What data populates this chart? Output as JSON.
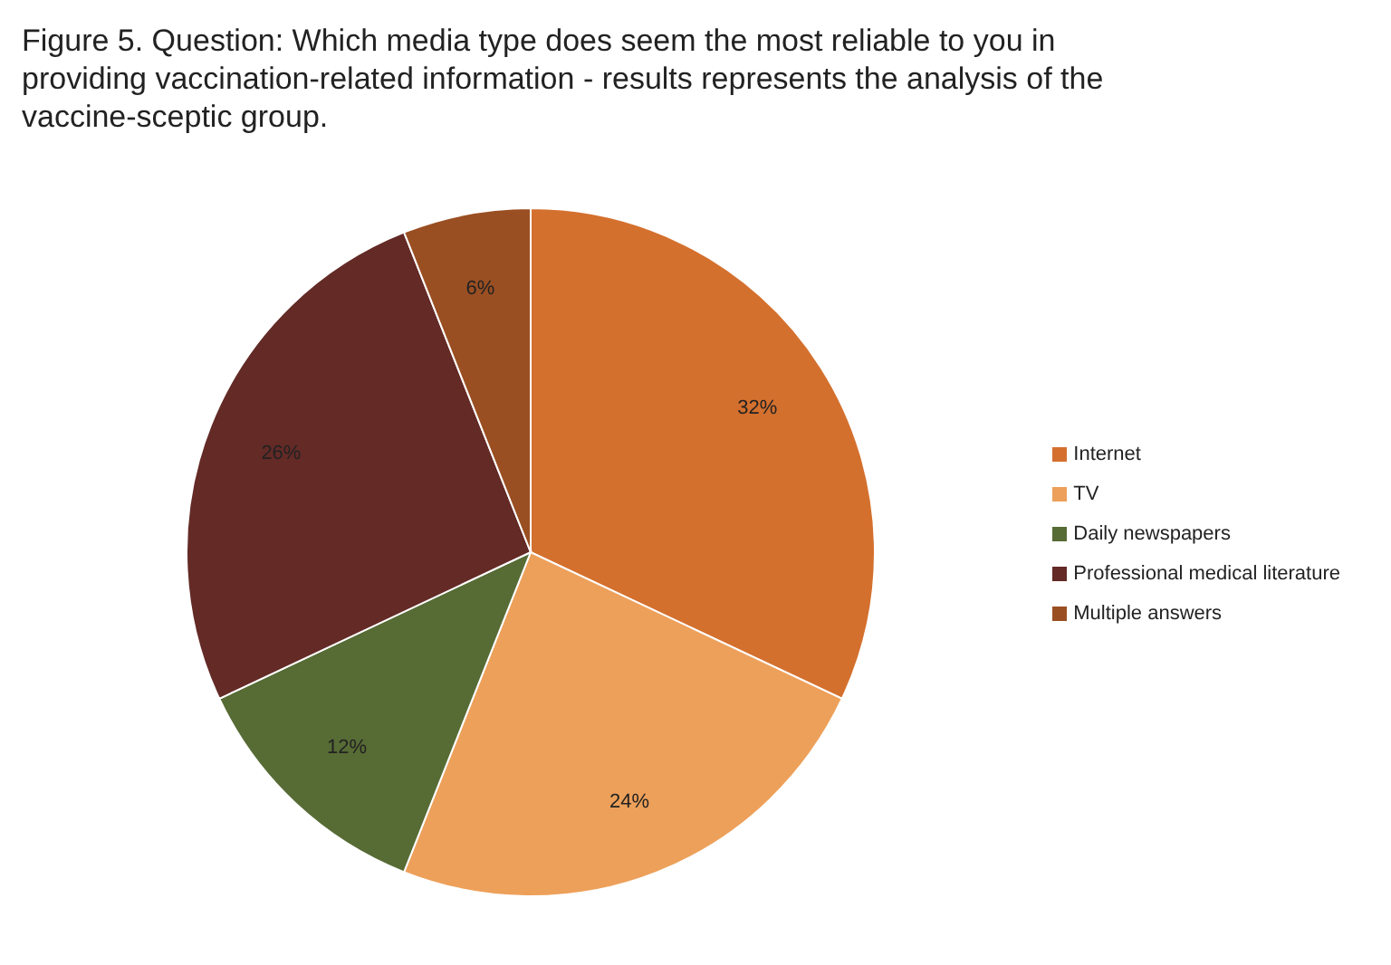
{
  "chart_data": {
    "type": "pie",
    "title": "Figure 5. Question: Which media type does seem the most reliable to you in providing vaccination-related information - results represents the analysis of the vaccine-sceptic group.",
    "categories": [
      "Internet",
      "TV",
      "Daily newspapers",
      "Professional medical literature",
      "Multiple answers"
    ],
    "values": [
      32,
      24,
      12,
      26,
      6
    ],
    "value_labels": [
      "32%",
      "24%",
      "12%",
      "26%",
      "6%"
    ],
    "colors": [
      "#d4702e",
      "#eda05a",
      "#576b35",
      "#632a26",
      "#9a4f22"
    ],
    "legend": "right"
  }
}
